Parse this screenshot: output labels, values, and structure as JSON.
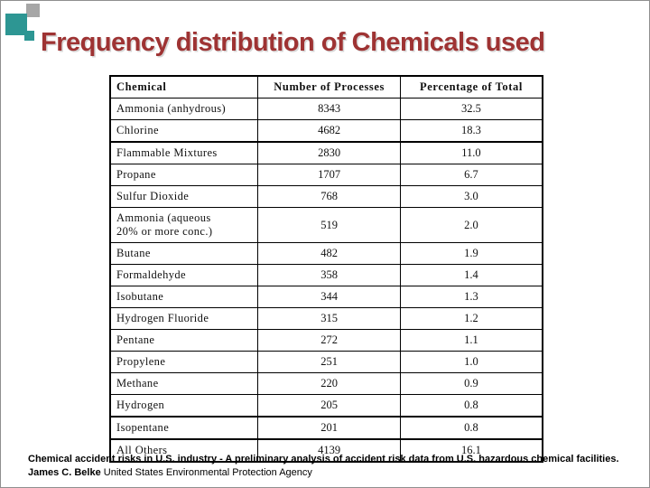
{
  "slide": {
    "title": "Frequency distribution of Chemicals used"
  },
  "table": {
    "headers": [
      "Chemical",
      "Number of Processes",
      "Percentage of Total"
    ],
    "rows": [
      [
        "Ammonia (anhydrous)",
        "8343",
        "32.5"
      ],
      [
        "Chlorine",
        "4682",
        "18.3"
      ],
      [
        "Flammable Mixtures",
        "2830",
        "11.0"
      ],
      [
        "Propane",
        "1707",
        "6.7"
      ],
      [
        "Sulfur Dioxide",
        "768",
        "3.0"
      ],
      [
        "Ammonia (aqueous\n20% or more conc.)",
        "519",
        "2.0"
      ],
      [
        "Butane",
        "482",
        "1.9"
      ],
      [
        "Formaldehyde",
        "358",
        "1.4"
      ],
      [
        "Isobutane",
        "344",
        "1.3"
      ],
      [
        "Hydrogen Fluoride",
        "315",
        "1.2"
      ],
      [
        "Pentane",
        "272",
        "1.1"
      ],
      [
        "Propylene",
        "251",
        "1.0"
      ],
      [
        "Methane",
        "220",
        "0.9"
      ],
      [
        "Hydrogen",
        "205",
        "0.8"
      ],
      [
        "Isopentane",
        "201",
        "0.8"
      ],
      [
        "All Others",
        "4139",
        "16.1"
      ]
    ]
  },
  "footer": {
    "bold": "Chemical accident risks in U.S. industry - A preliminary analysis of accident risk data from U.S. hazardous chemical facilities. James C. Belke",
    "regular": "United States Environmental Protection Agency"
  },
  "colors": {
    "title_red": "#9e3333",
    "accent_teal": "#2d9693",
    "decoration_gray": "#a6a6a6"
  }
}
